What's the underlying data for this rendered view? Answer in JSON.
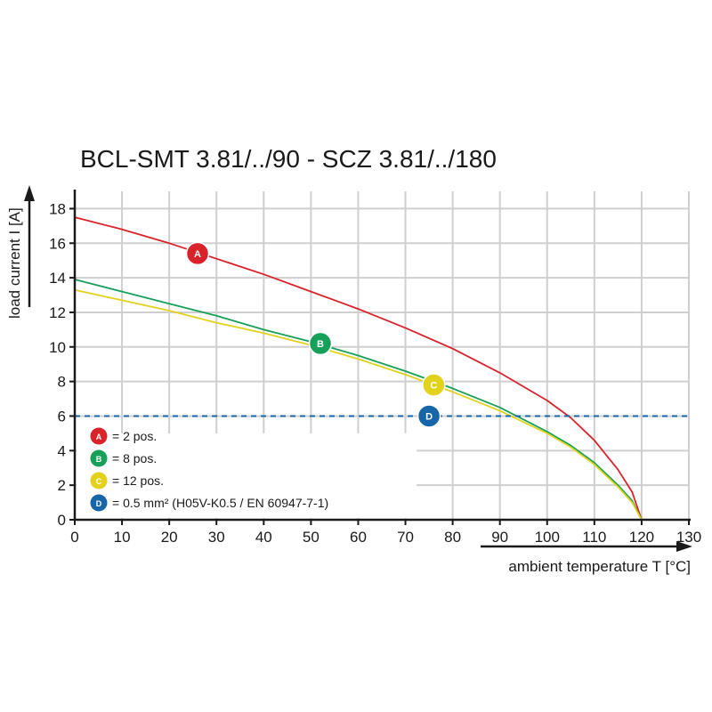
{
  "chart_data": {
    "type": "line",
    "title": "BCL-SMT 3.81/../90 - SCZ 3.81/../180",
    "xlabel": "ambient temperature T [°C]",
    "ylabel": "load current I [A]",
    "xlim": [
      0,
      130
    ],
    "ylim": [
      0,
      19
    ],
    "x_ticks": [
      "0",
      "10",
      "20",
      "30",
      "40",
      "50",
      "60",
      "70",
      "80",
      "90",
      "100",
      "110",
      "120",
      "130"
    ],
    "y_ticks": [
      "0",
      "2",
      "4",
      "6",
      "8",
      "10",
      "12",
      "14",
      "16",
      "18"
    ],
    "grid": true,
    "series": [
      {
        "name": "= 2 pos.",
        "marker": "A",
        "color": "#d8232a",
        "marker_at": [
          26,
          15.4
        ],
        "points": [
          [
            0,
            17.5
          ],
          [
            10,
            16.8
          ],
          [
            20,
            16.0
          ],
          [
            30,
            15.1
          ],
          [
            40,
            14.2
          ],
          [
            50,
            13.2
          ],
          [
            60,
            12.2
          ],
          [
            70,
            11.1
          ],
          [
            80,
            9.9
          ],
          [
            90,
            8.5
          ],
          [
            100,
            6.9
          ],
          [
            105,
            5.9
          ],
          [
            110,
            4.6
          ],
          [
            115,
            2.9
          ],
          [
            118,
            1.6
          ],
          [
            120,
            0
          ]
        ]
      },
      {
        "name": "= 8 pos.",
        "marker": "B",
        "color": "#16a05a",
        "marker_at": [
          52,
          10.2
        ],
        "points": [
          [
            0,
            13.9
          ],
          [
            10,
            13.2
          ],
          [
            20,
            12.5
          ],
          [
            30,
            11.8
          ],
          [
            40,
            11.0
          ],
          [
            50,
            10.3
          ],
          [
            60,
            9.5
          ],
          [
            70,
            8.6
          ],
          [
            80,
            7.6
          ],
          [
            90,
            6.5
          ],
          [
            100,
            5.1
          ],
          [
            105,
            4.3
          ],
          [
            110,
            3.3
          ],
          [
            115,
            2.0
          ],
          [
            118,
            1.1
          ],
          [
            120,
            0
          ]
        ]
      },
      {
        "name": "= 12 pos.",
        "marker": "C",
        "color": "#e2d21c",
        "marker_at": [
          76,
          7.8
        ],
        "points": [
          [
            0,
            13.3
          ],
          [
            10,
            12.7
          ],
          [
            20,
            12.1
          ],
          [
            30,
            11.4
          ],
          [
            40,
            10.8
          ],
          [
            50,
            10.1
          ],
          [
            60,
            9.3
          ],
          [
            70,
            8.4
          ],
          [
            80,
            7.4
          ],
          [
            90,
            6.3
          ],
          [
            100,
            5.0
          ],
          [
            105,
            4.2
          ],
          [
            110,
            3.2
          ],
          [
            115,
            1.9
          ],
          [
            118,
            1.0
          ],
          [
            120,
            0
          ]
        ]
      },
      {
        "name": "= 0.5 mm² (H05V-K0.5 / EN 60947-7-1)",
        "marker": "D",
        "color": "#1565a8",
        "marker_at": [
          75,
          6.0
        ],
        "dashed": true,
        "points": [
          [
            0,
            6
          ],
          [
            130,
            6
          ]
        ]
      }
    ],
    "legend_position": "bottom-left"
  }
}
